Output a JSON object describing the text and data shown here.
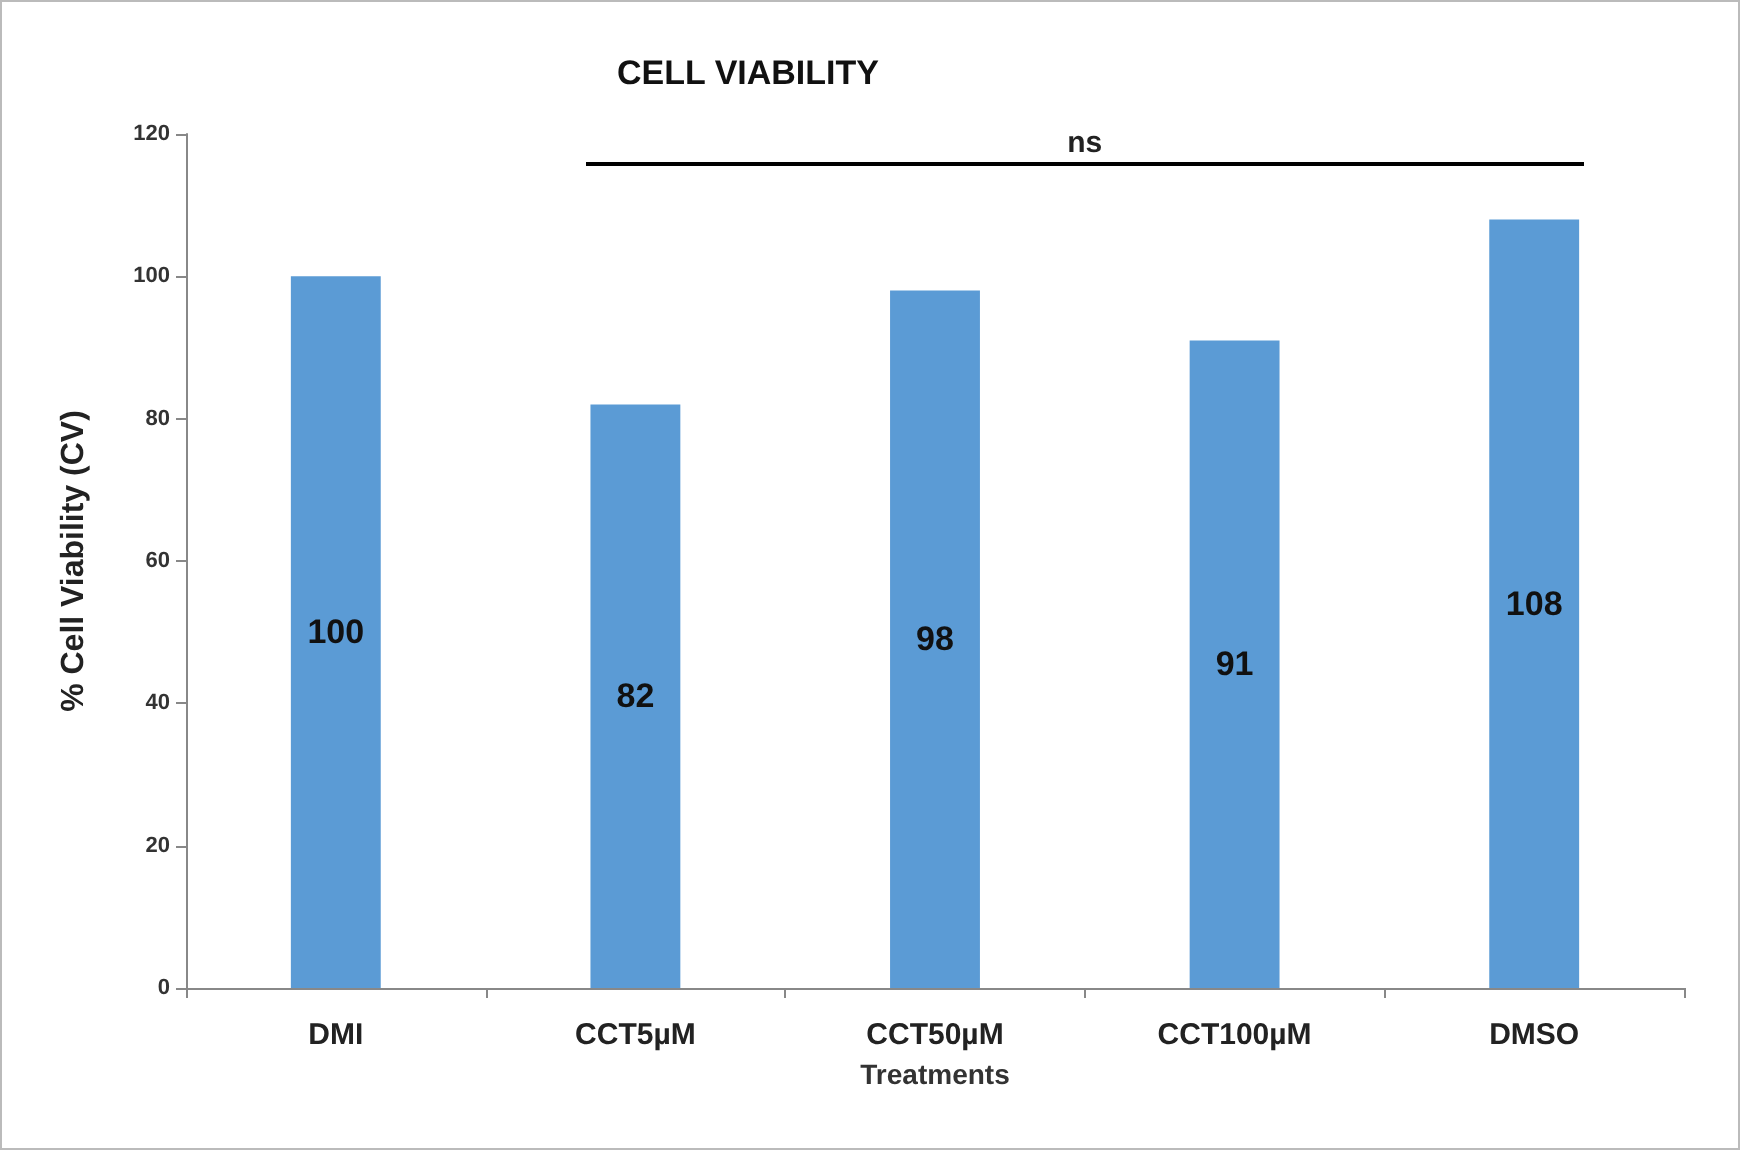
{
  "chart_data": {
    "type": "bar",
    "title": "CELL VIABILITY",
    "xlabel": "Treatments",
    "ylabel": "% Cell Viability (CV)",
    "categories": [
      "DMI",
      "CCT5µM",
      "CCT50µM",
      "CCT100µM",
      "DMSO"
    ],
    "values": [
      100,
      82,
      98,
      91,
      108
    ],
    "color": "#5b9bd5",
    "ylim": [
      0,
      120
    ],
    "yticks": [
      0,
      20,
      40,
      60,
      80,
      100,
      120
    ],
    "grid": false,
    "data_labels": true,
    "annotations": [
      "ns"
    ]
  }
}
